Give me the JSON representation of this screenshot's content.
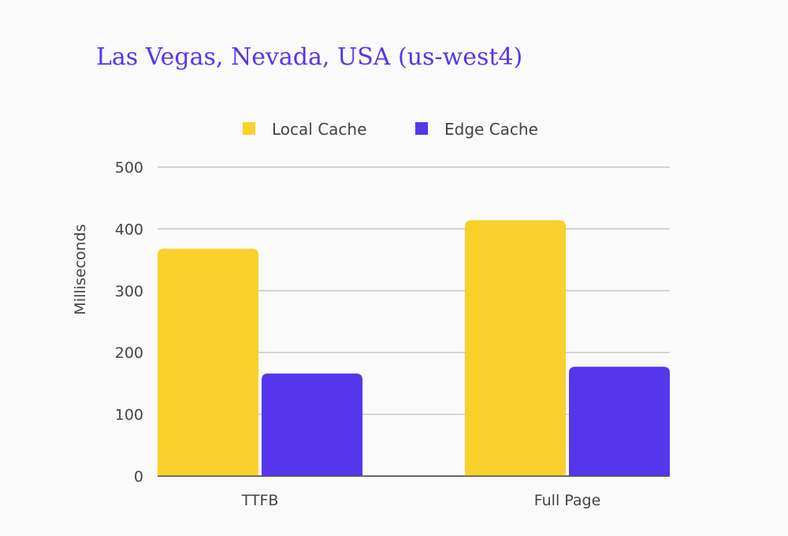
{
  "chart_data": {
    "type": "bar",
    "title": "Las Vegas, Nevada, USA (us-west4)",
    "xlabel": "",
    "ylabel": "Milliseconds",
    "categories": [
      "TTFB",
      "Full Page"
    ],
    "series": [
      {
        "name": "Local Cache",
        "values": [
          368,
          414
        ],
        "color": "#fad02c"
      },
      {
        "name": "Edge Cache",
        "values": [
          166,
          177
        ],
        "color": "#5536ec"
      }
    ],
    "ylim": [
      0,
      500
    ],
    "yticks": [
      0,
      100,
      200,
      300,
      400,
      500
    ],
    "grid": true,
    "legend": "top-center"
  }
}
